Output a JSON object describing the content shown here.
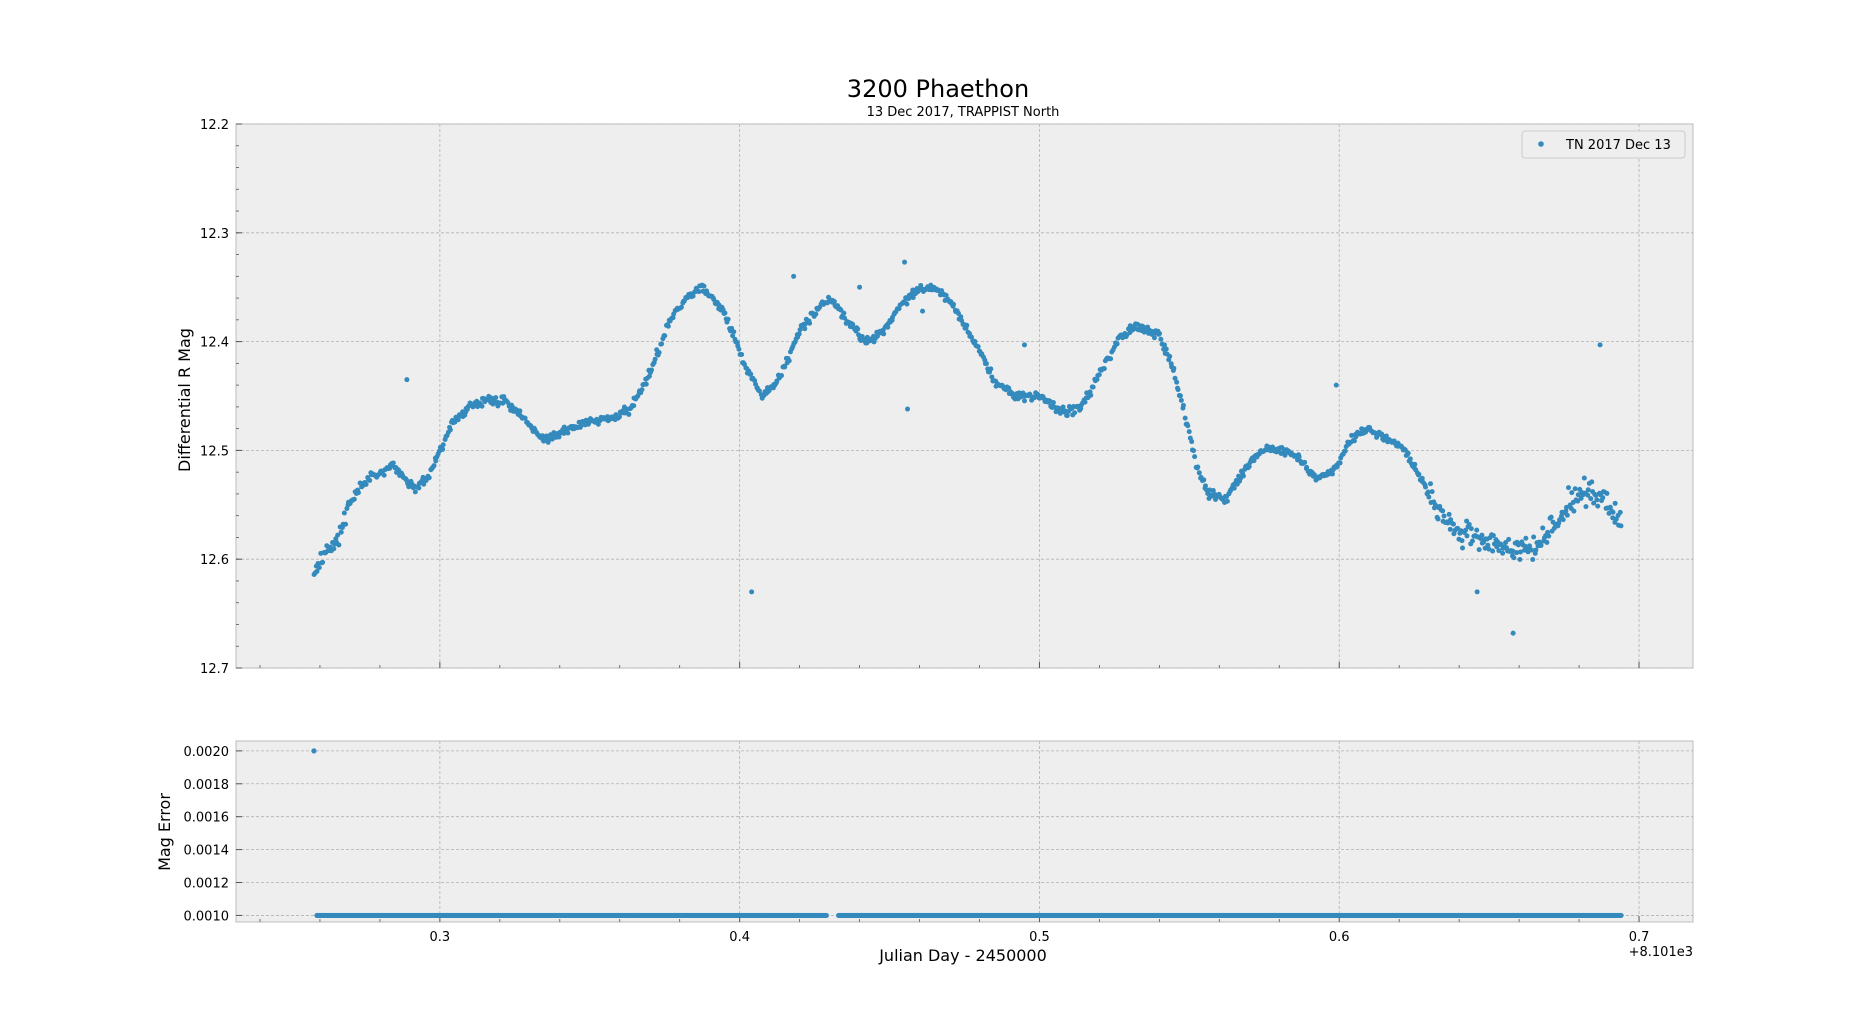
{
  "chart_data": [
    {
      "type": "scatter",
      "title": "3200 Phaethon",
      "subtitle": "13 Dec 2017, TRAPPIST North",
      "ylabel": "Differential R Mag",
      "xlabel": "",
      "xlim": [
        8101.232,
        8101.718
      ],
      "ylim": [
        12.7,
        12.2
      ],
      "y_inverted": true,
      "grid": true,
      "legend_position": "top-right",
      "yticks": [
        "12.2",
        "12.3",
        "12.4",
        "12.5",
        "12.6",
        "12.7"
      ],
      "series": [
        {
          "name": "TN 2017 Dec 13",
          "color": "#348abd",
          "keypoints": [
            [
              8101.258,
              12.61
            ],
            [
              8101.262,
              12.595
            ],
            [
              8101.266,
              12.58
            ],
            [
              8101.27,
              12.55
            ],
            [
              8101.274,
              12.53
            ],
            [
              8101.28,
              12.52
            ],
            [
              8101.284,
              12.515
            ],
            [
              8101.288,
              12.525
            ],
            [
              8101.292,
              12.535
            ],
            [
              8101.296,
              12.525
            ],
            [
              8101.3,
              12.5
            ],
            [
              8101.304,
              12.475
            ],
            [
              8101.31,
              12.46
            ],
            [
              8101.316,
              12.455
            ],
            [
              8101.322,
              12.455
            ],
            [
              8101.328,
              12.47
            ],
            [
              8101.334,
              12.49
            ],
            [
              8101.34,
              12.485
            ],
            [
              8101.348,
              12.475
            ],
            [
              8101.358,
              12.47
            ],
            [
              8101.364,
              12.46
            ],
            [
              8101.37,
              12.43
            ],
            [
              8101.376,
              12.385
            ],
            [
              8101.382,
              12.36
            ],
            [
              8101.388,
              12.35
            ],
            [
              8101.394,
              12.37
            ],
            [
              8101.398,
              12.395
            ],
            [
              8101.403,
              12.43
            ],
            [
              8101.408,
              12.45
            ],
            [
              8101.414,
              12.43
            ],
            [
              8101.42,
              12.39
            ],
            [
              8101.426,
              12.37
            ],
            [
              8101.43,
              12.36
            ],
            [
              8101.436,
              12.38
            ],
            [
              8101.442,
              12.4
            ],
            [
              8101.448,
              12.39
            ],
            [
              8101.454,
              12.365
            ],
            [
              8101.46,
              12.35
            ],
            [
              8101.468,
              12.355
            ],
            [
              8101.474,
              12.38
            ],
            [
              8101.48,
              12.41
            ],
            [
              8101.486,
              12.44
            ],
            [
              8101.492,
              12.45
            ],
            [
              8101.5,
              12.45
            ],
            [
              8101.508,
              12.465
            ],
            [
              8101.514,
              12.46
            ],
            [
              8101.52,
              12.43
            ],
            [
              8101.526,
              12.4
            ],
            [
              8101.532,
              12.385
            ],
            [
              8101.54,
              12.395
            ],
            [
              8101.544,
              12.42
            ],
            [
              8101.548,
              12.46
            ],
            [
              8101.552,
              12.51
            ],
            [
              8101.556,
              12.54
            ],
            [
              8101.562,
              12.545
            ],
            [
              8101.568,
              12.52
            ],
            [
              8101.574,
              12.5
            ],
            [
              8101.58,
              12.5
            ],
            [
              8101.586,
              12.505
            ],
            [
              8101.592,
              12.525
            ],
            [
              8101.598,
              12.52
            ],
            [
              8101.604,
              12.49
            ],
            [
              8101.61,
              12.48
            ],
            [
              8101.616,
              12.49
            ],
            [
              8101.622,
              12.5
            ],
            [
              8101.628,
              12.53
            ],
            [
              8101.634,
              12.56
            ],
            [
              8101.64,
              12.575
            ],
            [
              8101.646,
              12.58
            ],
            [
              8101.652,
              12.585
            ],
            [
              8101.658,
              12.595
            ],
            [
              8101.664,
              12.59
            ],
            [
              8101.67,
              12.575
            ],
            [
              8101.676,
              12.55
            ],
            [
              8101.682,
              12.535
            ],
            [
              8101.688,
              12.545
            ],
            [
              8101.694,
              12.57
            ]
          ],
          "outliers": [
            [
              8101.289,
              12.435
            ],
            [
              8101.404,
              12.63
            ],
            [
              8101.418,
              12.34
            ],
            [
              8101.456,
              12.462
            ],
            [
              8101.455,
              12.327
            ],
            [
              8101.495,
              12.403
            ],
            [
              8101.599,
              12.44
            ],
            [
              8101.646,
              12.63
            ],
            [
              8101.658,
              12.668
            ],
            [
              8101.687,
              12.403
            ],
            [
              8101.44,
              12.35
            ],
            [
              8101.461,
              12.372
            ]
          ]
        }
      ]
    },
    {
      "type": "scatter",
      "ylabel": "Mag Error",
      "xlabel": "Julian Day - 2450000",
      "x_offset_label": "+8.101e3",
      "xlim": [
        8101.232,
        8101.718
      ],
      "ylim": [
        0.00096,
        0.00206
      ],
      "grid": true,
      "xticks": [
        "0.3",
        "0.4",
        "0.5",
        "0.6",
        "0.7"
      ],
      "yticks": [
        "0.0010",
        "0.0012",
        "0.0014",
        "0.0016",
        "0.0018",
        "0.0020"
      ],
      "series": [
        {
          "color": "#348abd",
          "bands": [
            {
              "x_start": 8101.259,
              "x_end": 8101.429,
              "y": 0.001
            },
            {
              "x_start": 8101.433,
              "x_end": 8101.694,
              "y": 0.001
            }
          ],
          "points": [
            [
              8101.258,
              0.002
            ]
          ]
        }
      ]
    }
  ]
}
